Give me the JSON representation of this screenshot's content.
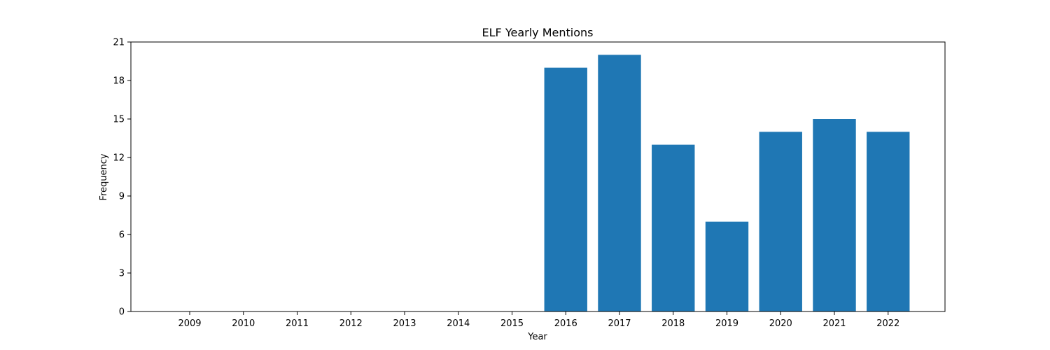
{
  "chart_data": {
    "type": "bar",
    "title": "ELF Yearly Mentions",
    "xlabel": "Year",
    "ylabel": "Frequency",
    "categories": [
      "2009",
      "2010",
      "2011",
      "2012",
      "2013",
      "2014",
      "2015",
      "2016",
      "2017",
      "2018",
      "2019",
      "2020",
      "2021",
      "2022"
    ],
    "values": [
      0,
      0,
      0,
      0,
      0,
      0,
      0,
      19,
      20,
      13,
      7,
      14,
      15,
      14
    ],
    "ylim": [
      0,
      21
    ],
    "yticks": [
      "0",
      "3",
      "6",
      "9",
      "12",
      "15",
      "18",
      "21"
    ],
    "bar_color": "#1f77b4",
    "grid": false,
    "legend": "none"
  }
}
